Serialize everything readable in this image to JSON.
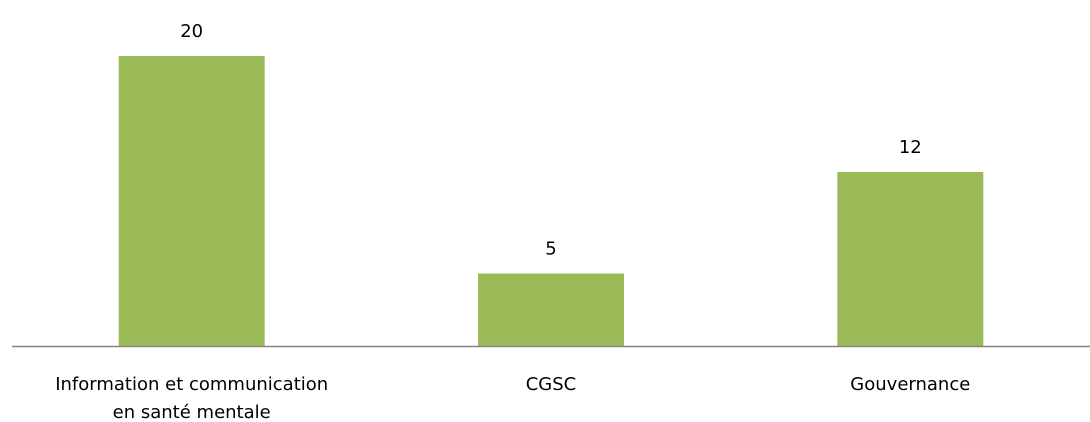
{
  "chart_data": {
    "type": "bar",
    "categories": [
      [
        "Information et communication",
        "en santé mentale"
      ],
      [
        "CGSC"
      ],
      [
        "Gouvernance"
      ]
    ],
    "values": [
      20,
      5,
      12
    ],
    "data_labels": [
      "20",
      "5",
      "12"
    ],
    "title": "",
    "xlabel": "",
    "ylabel": "",
    "ylim": [
      0,
      20
    ],
    "grid": false,
    "legend": "none",
    "bar_color": "#9bbb59",
    "axis_color": "#868686"
  }
}
